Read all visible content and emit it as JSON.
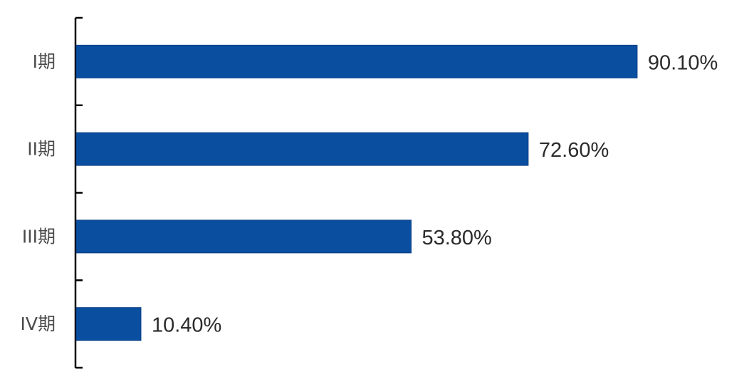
{
  "chart_data": {
    "type": "bar",
    "orientation": "horizontal",
    "categories": [
      "I期",
      "II期",
      "III期",
      "IV期"
    ],
    "values": [
      90.1,
      72.6,
      53.8,
      10.4
    ],
    "value_labels": [
      "90.10%",
      "72.60%",
      "53.80%",
      "10.40%"
    ],
    "unit": "%",
    "xlim": [
      0,
      100
    ],
    "grid": false,
    "legend": "none",
    "bar_color": "#0a4ea0"
  }
}
